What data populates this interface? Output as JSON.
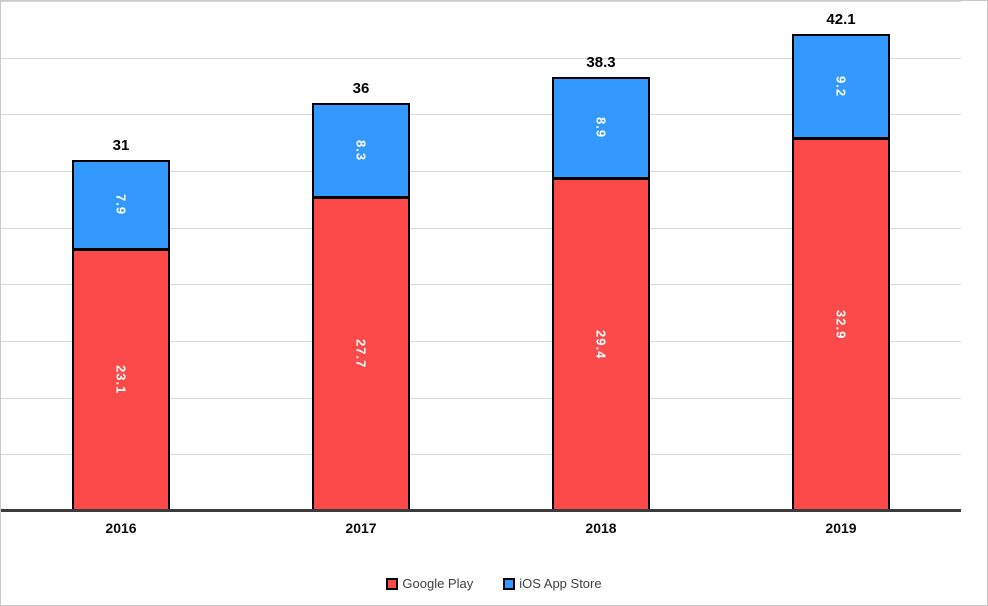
{
  "chart_data": {
    "type": "bar",
    "stacked": true,
    "title": "",
    "xlabel": "",
    "ylabel": "",
    "categories": [
      "2016",
      "2017",
      "2018",
      "2019"
    ],
    "series": [
      {
        "name": "Google Play",
        "color": "#fc4a4a",
        "values": [
          23.1,
          27.7,
          29.4,
          32.9
        ],
        "value_labels": [
          "23.1",
          "27.7",
          "29.4",
          "32.9"
        ]
      },
      {
        "name": "iOS App Store",
        "color": "#3399ff",
        "values": [
          7.9,
          8.3,
          8.9,
          9.2
        ],
        "value_labels": [
          "7.9",
          "8.3",
          "8.9",
          "9.2"
        ]
      }
    ],
    "totals": [
      31,
      36,
      38.3,
      42.1
    ],
    "total_labels": [
      "31",
      "36",
      "38.3",
      "42.1"
    ],
    "ylim": [
      0,
      45
    ],
    "gridline_step": 5,
    "grid": true,
    "y_tick_labels_visible": false,
    "legend_position": "bottom"
  },
  "style": {
    "bar_border_color": "#000000",
    "axis_line_color": "#3b3b3b",
    "gridline_color": "#d9d9d9",
    "frame_border_color": "#c9c9c9",
    "legend_text_color": "#404040",
    "bar_label_text_color": "#ffffff",
    "total_label_text_color": "#000000"
  }
}
